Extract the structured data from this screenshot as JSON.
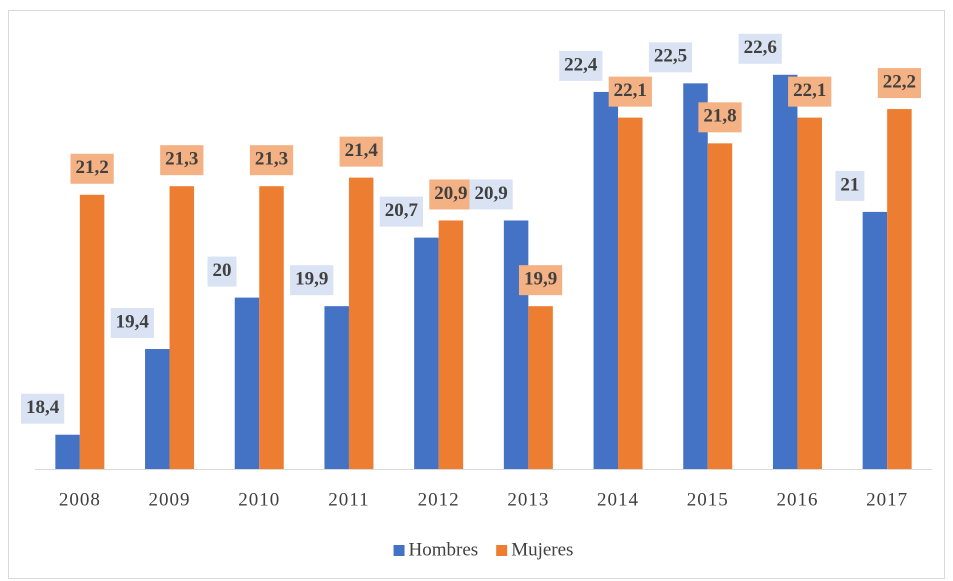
{
  "chart_data": {
    "type": "bar",
    "categories": [
      "2008",
      "2009",
      "2010",
      "2011",
      "2012",
      "2013",
      "2014",
      "2015",
      "2016",
      "2017"
    ],
    "series": [
      {
        "name": "Hombres",
        "color": "#4472c4",
        "label_background": "#dae3f3",
        "values": [
          18.4,
          19.4,
          20,
          19.9,
          20.7,
          20.9,
          22.4,
          22.5,
          22.6,
          21
        ],
        "value_labels": [
          "18,4",
          "19,4",
          "20",
          "19,9",
          "20,7",
          "20,9",
          "22,4",
          "22,5",
          "22,6",
          "21"
        ]
      },
      {
        "name": "Mujeres",
        "color": "#ed7d31",
        "label_background": "#f4b183",
        "values": [
          21.2,
          21.3,
          21.3,
          21.4,
          20.9,
          19.9,
          22.1,
          21.8,
          22.1,
          22.2
        ],
        "value_labels": [
          "21,2",
          "21,3",
          "21,3",
          "21,4",
          "20,9",
          "19,9",
          "22,1",
          "21,8",
          "22,1",
          "22,2"
        ]
      }
    ],
    "ylim": [
      18,
      23
    ],
    "legend": "bottom"
  }
}
